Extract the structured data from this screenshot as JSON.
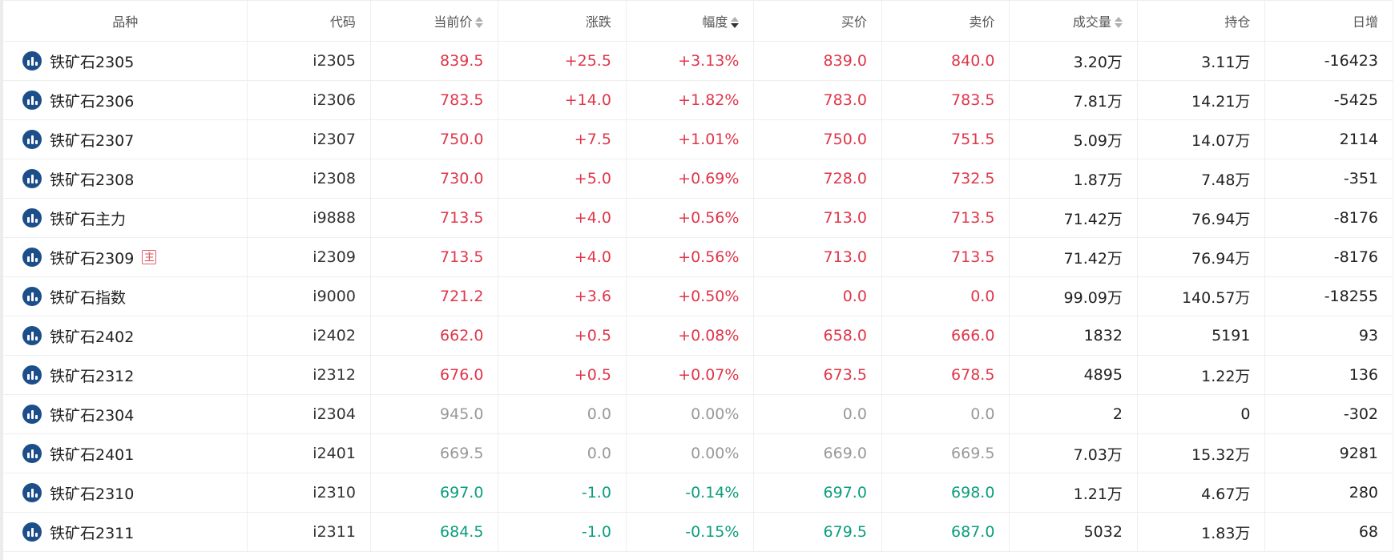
{
  "headers": {
    "name": "品种",
    "code": "代码",
    "price": "当前价",
    "change": "涨跌",
    "pct": "幅度",
    "bid": "买价",
    "ask": "卖价",
    "volume": "成交量",
    "oi": "持仓",
    "daily": "日增"
  },
  "colors": {
    "up": "#e0364a",
    "down": "#0a9e7e",
    "flat": "#999999",
    "icon": "#1c4e8a"
  },
  "rows": [
    {
      "name": "铁矿石2305",
      "badge": "",
      "code": "i2305",
      "price": "839.5",
      "change": "+25.5",
      "pct": "+3.13%",
      "bid": "839.0",
      "ask": "840.0",
      "volume": "3.20万",
      "oi": "3.11万",
      "daily": "-16423",
      "trend": "up"
    },
    {
      "name": "铁矿石2306",
      "badge": "",
      "code": "i2306",
      "price": "783.5",
      "change": "+14.0",
      "pct": "+1.82%",
      "bid": "783.0",
      "ask": "783.5",
      "volume": "7.81万",
      "oi": "14.21万",
      "daily": "-5425",
      "trend": "up"
    },
    {
      "name": "铁矿石2307",
      "badge": "",
      "code": "i2307",
      "price": "750.0",
      "change": "+7.5",
      "pct": "+1.01%",
      "bid": "750.0",
      "ask": "751.5",
      "volume": "5.09万",
      "oi": "14.07万",
      "daily": "2114",
      "trend": "up"
    },
    {
      "name": "铁矿石2308",
      "badge": "",
      "code": "i2308",
      "price": "730.0",
      "change": "+5.0",
      "pct": "+0.69%",
      "bid": "728.0",
      "ask": "732.5",
      "volume": "1.87万",
      "oi": "7.48万",
      "daily": "-351",
      "trend": "up"
    },
    {
      "name": "铁矿石主力",
      "badge": "",
      "code": "i9888",
      "price": "713.5",
      "change": "+4.0",
      "pct": "+0.56%",
      "bid": "713.0",
      "ask": "713.5",
      "volume": "71.42万",
      "oi": "76.94万",
      "daily": "-8176",
      "trend": "up"
    },
    {
      "name": "铁矿石2309",
      "badge": "主",
      "code": "i2309",
      "price": "713.5",
      "change": "+4.0",
      "pct": "+0.56%",
      "bid": "713.0",
      "ask": "713.5",
      "volume": "71.42万",
      "oi": "76.94万",
      "daily": "-8176",
      "trend": "up"
    },
    {
      "name": "铁矿石指数",
      "badge": "",
      "code": "i9000",
      "price": "721.2",
      "change": "+3.6",
      "pct": "+0.50%",
      "bid": "0.0",
      "ask": "0.0",
      "volume": "99.09万",
      "oi": "140.57万",
      "daily": "-18255",
      "trend": "up"
    },
    {
      "name": "铁矿石2402",
      "badge": "",
      "code": "i2402",
      "price": "662.0",
      "change": "+0.5",
      "pct": "+0.08%",
      "bid": "658.0",
      "ask": "666.0",
      "volume": "1832",
      "oi": "5191",
      "daily": "93",
      "trend": "up"
    },
    {
      "name": "铁矿石2312",
      "badge": "",
      "code": "i2312",
      "price": "676.0",
      "change": "+0.5",
      "pct": "+0.07%",
      "bid": "673.5",
      "ask": "678.5",
      "volume": "4895",
      "oi": "1.22万",
      "daily": "136",
      "trend": "up"
    },
    {
      "name": "铁矿石2304",
      "badge": "",
      "code": "i2304",
      "price": "945.0",
      "change": "0.0",
      "pct": "0.00%",
      "bid": "0.0",
      "ask": "0.0",
      "volume": "2",
      "oi": "0",
      "daily": "-302",
      "trend": "flat"
    },
    {
      "name": "铁矿石2401",
      "badge": "",
      "code": "i2401",
      "price": "669.5",
      "change": "0.0",
      "pct": "0.00%",
      "bid": "669.0",
      "ask": "669.5",
      "volume": "7.03万",
      "oi": "15.32万",
      "daily": "9281",
      "trend": "flat"
    },
    {
      "name": "铁矿石2310",
      "badge": "",
      "code": "i2310",
      "price": "697.0",
      "change": "-1.0",
      "pct": "-0.14%",
      "bid": "697.0",
      "ask": "698.0",
      "volume": "1.21万",
      "oi": "4.67万",
      "daily": "280",
      "trend": "down"
    },
    {
      "name": "铁矿石2311",
      "badge": "",
      "code": "i2311",
      "price": "684.5",
      "change": "-1.0",
      "pct": "-0.15%",
      "bid": "679.5",
      "ask": "687.0",
      "volume": "5032",
      "oi": "1.83万",
      "daily": "68",
      "trend": "down"
    }
  ]
}
